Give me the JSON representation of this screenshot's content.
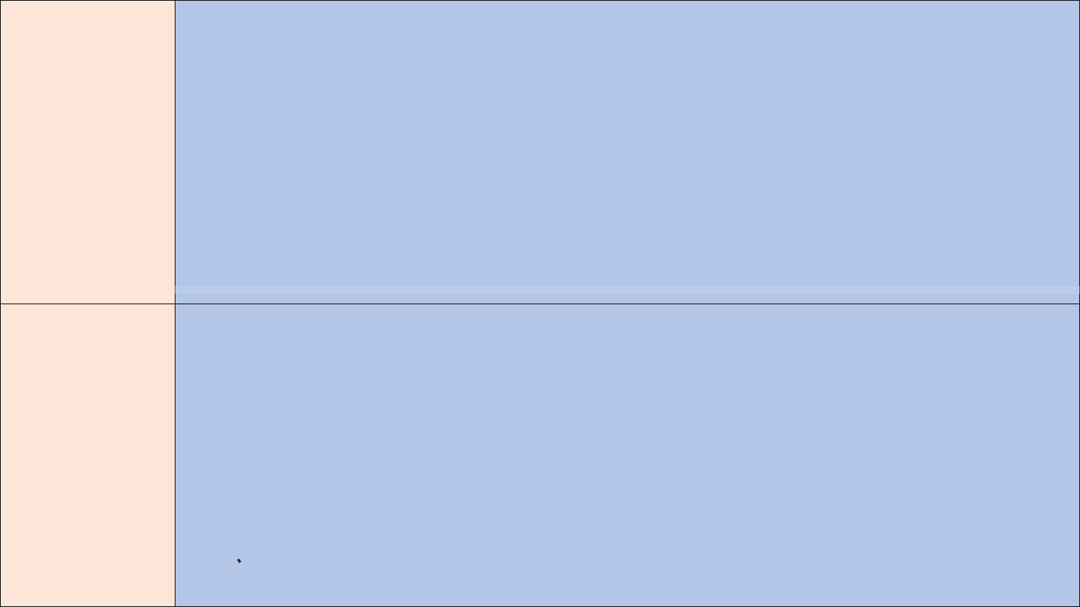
{
  "theme": {
    "side_panel_color": "#fde6d8",
    "main_panel_color": "#b3c6e7",
    "border_color": "#1a1a1a",
    "divider_tint": "#c9d6ef",
    "cursor_color": "#222222"
  },
  "panels": {
    "top": {
      "side_label": "",
      "main_label": ""
    },
    "bottom": {
      "side_label": "",
      "main_label": ""
    }
  },
  "cursor": {
    "icon": "mouse-pointer-icon"
  }
}
